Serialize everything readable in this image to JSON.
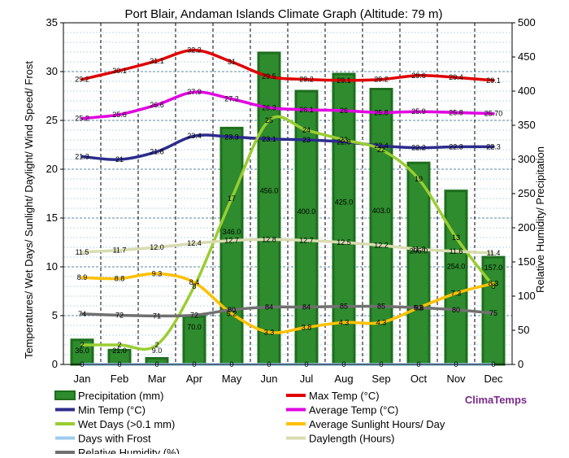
{
  "chart_data": {
    "type": "bar",
    "title": "Port Blair, Andaman Islands Climate Graph (Altitude: 79 m)",
    "ylabel_left": "Temperatures/ Wet Days/ Sunlight/ Daylight/ Wind Speed/ Frost",
    "ylabel_right": "Relative Humidity/ Precipitation",
    "categories": [
      "Jan",
      "Feb",
      "Mar",
      "Apr",
      "May",
      "Jun",
      "Jul",
      "Aug",
      "Sep",
      "Oct",
      "Nov",
      "Dec"
    ],
    "ylim_left": [
      0,
      35
    ],
    "ylim_right": [
      0,
      500
    ],
    "yticks_left": [
      "0",
      "5",
      "10",
      "15",
      "20",
      "25",
      "30",
      "35"
    ],
    "yticks_right": [
      "0",
      "50",
      "100",
      "150",
      "200",
      "250",
      "300",
      "350",
      "400",
      "450",
      "500"
    ],
    "grid": true,
    "legend_position": "bottom",
    "brand": "ClimaTemps",
    "series": [
      {
        "name": "Precipitation (mm)",
        "axis": "right",
        "kind": "bar",
        "color": "#2e8b2e",
        "values": [
          36.0,
          21.0,
          9.0,
          70.0,
          346.0,
          456.0,
          400.0,
          425.0,
          403.0,
          295.0,
          254.0,
          157.0
        ],
        "labels": [
          "36.0",
          "21.0",
          "9.0",
          "70.0",
          "346.0",
          "456.0",
          "400.0",
          "425.0",
          "403.0",
          "295.0",
          "254.0",
          "157.0"
        ]
      },
      {
        "name": "Max Temp (°C)",
        "axis": "left",
        "kind": "line",
        "color": "#e00000",
        "values": [
          29.2,
          30.1,
          31.1,
          32.2,
          31,
          29.5,
          29.2,
          29.1,
          29.2,
          29.6,
          29.4,
          29.1
        ],
        "labels": [
          "29.2",
          "30.1",
          "31.1",
          "32.2",
          "31",
          "29.5",
          "29.2",
          "29.1",
          "29.2",
          "29.6",
          "29.4",
          "29.1"
        ]
      },
      {
        "name": "Min Temp (°C)",
        "axis": "left",
        "kind": "line",
        "color": "#2c2c8c",
        "values": [
          21.3,
          21,
          21.8,
          23.4,
          23.3,
          23.1,
          23,
          22.8,
          22.4,
          22.2,
          22.3,
          22.3
        ],
        "labels": [
          "21.3",
          "21",
          "21.8",
          "23.4",
          "23.3",
          "23.1",
          "23",
          "22.8",
          "22.4",
          "22.2",
          "22.3",
          "22.3"
        ]
      },
      {
        "name": "Average Temp (°C)",
        "axis": "left",
        "kind": "line",
        "color": "#e000e0",
        "values": [
          25.2,
          25.6,
          26.6,
          27.9,
          27.2,
          26.3,
          26.1,
          26,
          25.8,
          25.9,
          25.8,
          25.7
        ],
        "labels": [
          "25.2",
          "25.6",
          "26.6",
          "27.9",
          "27.2",
          "26.3",
          "26.1",
          "26",
          "25.8",
          "25.9",
          "25.8",
          "25.70"
        ]
      },
      {
        "name": "Wet Days (>0.1 mm)",
        "axis": "left",
        "kind": "line",
        "color": "#9acd32",
        "values": [
          2,
          2,
          2,
          8,
          17,
          25,
          24,
          23,
          22,
          19,
          13,
          8
        ],
        "labels": [
          "2",
          "2",
          "2",
          "8",
          "17",
          "25",
          "24",
          "23",
          "22",
          "19",
          "13",
          "8"
        ]
      },
      {
        "name": "Average Sunlight Hours/ Day",
        "axis": "left",
        "kind": "line",
        "color": "#ffc000",
        "values": [
          8.9,
          8.8,
          9.3,
          8.4,
          5.2,
          3.3,
          3.8,
          4.3,
          4.3,
          5.8,
          7.3,
          8.3
        ],
        "labels": [
          "8.9",
          "8.8",
          "9.3",
          "8.4",
          "5.2",
          "3.3",
          "3.8",
          "4.3",
          "4.3",
          "5.8",
          "7.3",
          "8.3"
        ]
      },
      {
        "name": "Days with Frost",
        "axis": "left",
        "kind": "line",
        "color": "#9ecbee",
        "values": [
          0,
          0,
          0,
          0,
          0,
          0,
          0,
          0,
          0,
          0,
          0,
          0
        ],
        "labels": [
          "0",
          "0",
          "0",
          "0",
          "0",
          "0",
          "0",
          "0",
          "0",
          "0",
          "0",
          "0"
        ]
      },
      {
        "name": "Daylength (Hours)",
        "axis": "left",
        "kind": "line",
        "color": "#d8dcb0",
        "values": [
          11.5,
          11.7,
          12.0,
          12.4,
          12.7,
          12.8,
          12.7,
          12.5,
          12.2,
          11.8,
          11.6,
          11.4
        ],
        "labels": [
          "11.5",
          "11.7",
          "12.0",
          "12.4",
          "12.7",
          "12.8",
          "12.7",
          "12.5",
          "12.2",
          "11.8",
          "11.6",
          "11.4"
        ]
      },
      {
        "name": "Relative Humidity (%)",
        "axis": "right",
        "kind": "line",
        "color": "#707070",
        "values": [
          74,
          72,
          71,
          72,
          80,
          84,
          84,
          85,
          85,
          83,
          80,
          75
        ],
        "labels": [
          "74",
          "72",
          "71",
          "72",
          "80",
          "84",
          "84",
          "85",
          "85",
          "83",
          "80",
          "75"
        ]
      }
    ]
  }
}
